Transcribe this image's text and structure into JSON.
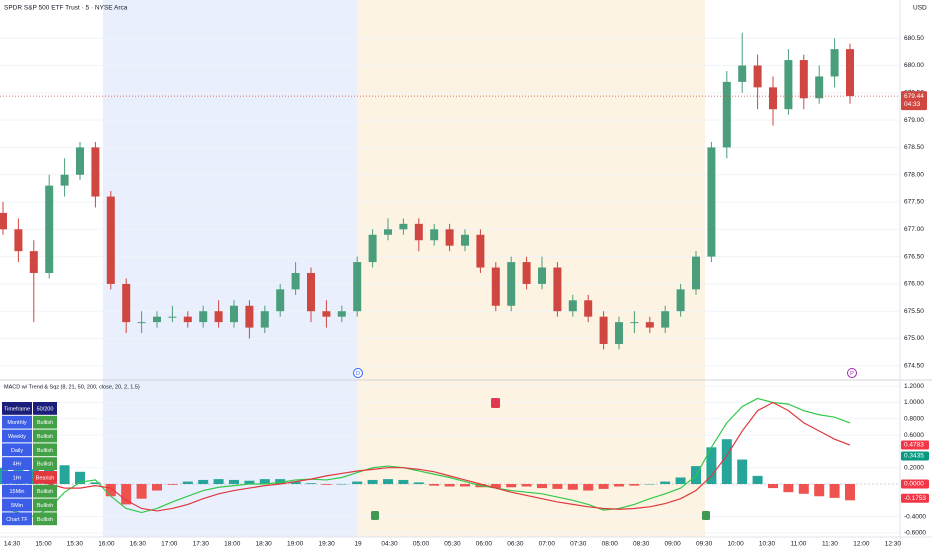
{
  "header": {
    "symbol": "SPDR S&P 500 ETF Trust · 5 · NYSE Arca",
    "currency": "USD"
  },
  "session_markers": [
    "D",
    "P"
  ],
  "table": {
    "header": [
      "Timeframe",
      "50/200"
    ],
    "rows": [
      [
        "Monthly",
        "Bullish"
      ],
      [
        "Weekly",
        "Bullish"
      ],
      [
        "Daily",
        "Bullish"
      ],
      [
        "4Hr",
        "Bullish"
      ],
      [
        "1Hr",
        "Bearish"
      ],
      [
        "15Min",
        "Bullish"
      ],
      [
        "5Min",
        "Bullish"
      ],
      [
        "Chart TF",
        "Bullish"
      ]
    ]
  },
  "chart_data": [
    {
      "type": "candlestick",
      "up_color": "#4a9e7c",
      "down_color": "#cf4740",
      "open": [
        677.3,
        677.0,
        676.6,
        676.2,
        677.8,
        678.0,
        678.5,
        677.6,
        676.0,
        675.3,
        675.3,
        675.4,
        675.4,
        675.3,
        675.5,
        675.3,
        675.6,
        675.2,
        675.5,
        675.9,
        676.2,
        675.5,
        675.4,
        675.5,
        676.4,
        676.9,
        677.0,
        677.1,
        676.8,
        677.0,
        676.7,
        676.9,
        676.3,
        675.6,
        676.4,
        676.0,
        676.3,
        675.5,
        675.7,
        675.4,
        674.9,
        675.3,
        675.3,
        675.2,
        675.5,
        675.9,
        676.5,
        678.5,
        679.7,
        680.0,
        679.6,
        679.2,
        680.1,
        679.4,
        679.8,
        680.3
      ],
      "high": [
        677.5,
        677.2,
        676.8,
        678.0,
        678.3,
        678.6,
        678.6,
        677.7,
        676.1,
        675.5,
        675.5,
        675.6,
        675.5,
        675.6,
        675.7,
        675.7,
        675.7,
        675.6,
        676.0,
        676.4,
        676.3,
        675.7,
        675.6,
        676.5,
        677.0,
        677.2,
        677.2,
        677.2,
        677.1,
        677.1,
        677.0,
        677.0,
        676.4,
        676.5,
        676.5,
        676.5,
        676.4,
        675.8,
        675.8,
        675.5,
        675.4,
        675.5,
        675.4,
        675.6,
        676.0,
        676.6,
        678.6,
        679.9,
        680.6,
        680.2,
        679.8,
        680.3,
        680.2,
        680.0,
        680.5,
        680.4
      ],
      "low": [
        676.9,
        676.4,
        675.3,
        676.1,
        677.6,
        677.9,
        677.4,
        675.9,
        675.1,
        675.1,
        675.2,
        675.3,
        675.2,
        675.2,
        675.2,
        675.2,
        675.0,
        675.1,
        675.4,
        675.8,
        675.3,
        675.2,
        675.3,
        675.4,
        676.3,
        676.8,
        676.9,
        676.6,
        676.7,
        676.6,
        676.6,
        676.2,
        675.5,
        675.5,
        675.9,
        675.9,
        675.4,
        675.4,
        675.3,
        674.8,
        674.8,
        675.1,
        675.1,
        675.1,
        675.4,
        675.8,
        676.4,
        678.3,
        679.5,
        679.2,
        678.9,
        679.1,
        679.2,
        679.3,
        679.6,
        679.3
      ],
      "close": [
        677.0,
        676.6,
        676.2,
        677.8,
        678.0,
        678.5,
        677.6,
        676.0,
        675.3,
        675.3,
        675.4,
        675.4,
        675.3,
        675.5,
        675.3,
        675.6,
        675.2,
        675.5,
        675.9,
        676.2,
        675.5,
        675.4,
        675.5,
        676.4,
        676.9,
        677.0,
        677.1,
        676.8,
        677.0,
        676.7,
        676.9,
        676.3,
        675.6,
        676.4,
        676.0,
        676.3,
        675.5,
        675.7,
        675.4,
        674.9,
        675.3,
        675.3,
        675.2,
        675.5,
        675.9,
        676.5,
        678.5,
        679.7,
        680.0,
        679.6,
        679.2,
        680.1,
        679.4,
        679.8,
        680.3,
        679.44
      ],
      "ylim": [
        674.24,
        681.2
      ],
      "yticks": [
        {
          "value": 674.5,
          "label": "674.50"
        },
        {
          "value": 675,
          "label": "675.00"
        },
        {
          "value": 675.5,
          "label": "675.50"
        },
        {
          "value": 676,
          "label": "676.00"
        },
        {
          "value": 676.5,
          "label": "676.50"
        },
        {
          "value": 677,
          "label": "677.00"
        },
        {
          "value": 677.5,
          "label": "677.50"
        },
        {
          "value": 678,
          "label": "678.00"
        },
        {
          "value": 678.5,
          "label": "678.50"
        },
        {
          "value": 679,
          "label": "679.00"
        },
        {
          "value": 679.5,
          "label": "679.50"
        },
        {
          "value": 680,
          "label": "680.00"
        },
        {
          "value": 680.5,
          "label": "680.50"
        }
      ],
      "xticks": [
        "14:30",
        "15:00",
        "15:30",
        "16:00",
        "16:30",
        "17:00",
        "17:30",
        "18:00",
        "18:30",
        "19:00",
        "19:30",
        "19",
        "04:30",
        "05:00",
        "05:30",
        "06:00",
        "06:30",
        "07:00",
        "07:30",
        "08:00",
        "08:30",
        "09:00",
        "09:30",
        "10:00",
        "10:30",
        "11:00",
        "11:30",
        "12:00",
        "12:30"
      ],
      "last_price": 679.44,
      "countdown": "04:33",
      "grid": true
    },
    {
      "type": "macd",
      "title": "MACD w/ Trend & Sqz (8, 21, 50, 200, close, 20, 2, 1.5)",
      "histogram": {
        "pos_color": "#26a69a",
        "neg_color": "#ef5350",
        "values": [
          0.2,
          0.22,
          0.18,
          0.25,
          0.23,
          0.15,
          0.02,
          -0.15,
          -0.25,
          -0.18,
          -0.08,
          -0.01,
          0.03,
          0.05,
          0.06,
          0.05,
          0.04,
          0.06,
          0.06,
          0.03,
          0.01,
          -0.01,
          0.0,
          0.03,
          0.05,
          0.06,
          0.05,
          0.02,
          -0.02,
          -0.03,
          -0.03,
          -0.04,
          -0.05,
          -0.04,
          -0.03,
          -0.05,
          -0.06,
          -0.07,
          -0.08,
          -0.06,
          -0.03,
          -0.02,
          0.0,
          0.03,
          0.08,
          0.22,
          0.45,
          0.55,
          0.3,
          0.1,
          -0.05,
          -0.1,
          -0.12,
          -0.15,
          -0.17,
          -0.2
        ]
      },
      "series": [
        {
          "color": "#33c94a",
          "values": [
            -0.3,
            -0.35,
            -0.4,
            -0.3,
            -0.1,
            0.02,
            0.05,
            -0.15,
            -0.3,
            -0.35,
            -0.3,
            -0.22,
            -0.15,
            -0.08,
            -0.04,
            -0.02,
            0.0,
            0.0,
            0.02,
            0.05,
            0.06,
            0.05,
            0.08,
            0.14,
            0.2,
            0.22,
            0.2,
            0.16,
            0.12,
            0.08,
            0.03,
            -0.02,
            -0.05,
            -0.08,
            -0.1,
            -0.12,
            -0.16,
            -0.2,
            -0.25,
            -0.32,
            -0.3,
            -0.25,
            -0.18,
            -0.12,
            -0.05,
            0.1,
            0.45,
            0.75,
            0.95,
            1.05,
            1.0,
            0.98,
            0.9,
            0.85,
            0.82,
            0.75
          ]
        },
        {
          "color": "#e0383e",
          "values": [
            0.1,
            0.08,
            0.05,
            0.0,
            -0.05,
            -0.05,
            -0.02,
            -0.05,
            -0.2,
            -0.3,
            -0.33,
            -0.3,
            -0.25,
            -0.18,
            -0.12,
            -0.08,
            -0.05,
            -0.02,
            0.0,
            0.03,
            0.06,
            0.1,
            0.13,
            0.16,
            0.18,
            0.2,
            0.2,
            0.18,
            0.15,
            0.1,
            0.05,
            0.0,
            -0.05,
            -0.1,
            -0.14,
            -0.18,
            -0.22,
            -0.25,
            -0.28,
            -0.3,
            -0.31,
            -0.3,
            -0.28,
            -0.24,
            -0.18,
            -0.08,
            0.1,
            0.35,
            0.65,
            0.9,
            1.0,
            0.9,
            0.75,
            0.65,
            0.55,
            0.4783
          ]
        }
      ],
      "ylim": [
        -0.65,
        1.276
      ],
      "yticks": [
        {
          "value": 1.2,
          "label": "1.2000"
        },
        {
          "value": 1,
          "label": "1.0000"
        },
        {
          "value": 0.8,
          "label": "0.8000"
        },
        {
          "value": 0.6,
          "label": "0.6000"
        },
        {
          "value": 0.2,
          "label": "0.2000"
        },
        {
          "value": -0.4,
          "label": "-0.4000"
        },
        {
          "value": -0.6,
          "label": "-0.6000"
        }
      ],
      "markers": [
        {
          "value": 0.4783,
          "color": "#f23645"
        },
        {
          "value": 0.3435,
          "color": "#089981"
        },
        {
          "value": 0,
          "label": "0.0000",
          "color": "#f23645"
        },
        {
          "value": -0.1753,
          "color": "#f23645"
        }
      ]
    }
  ]
}
